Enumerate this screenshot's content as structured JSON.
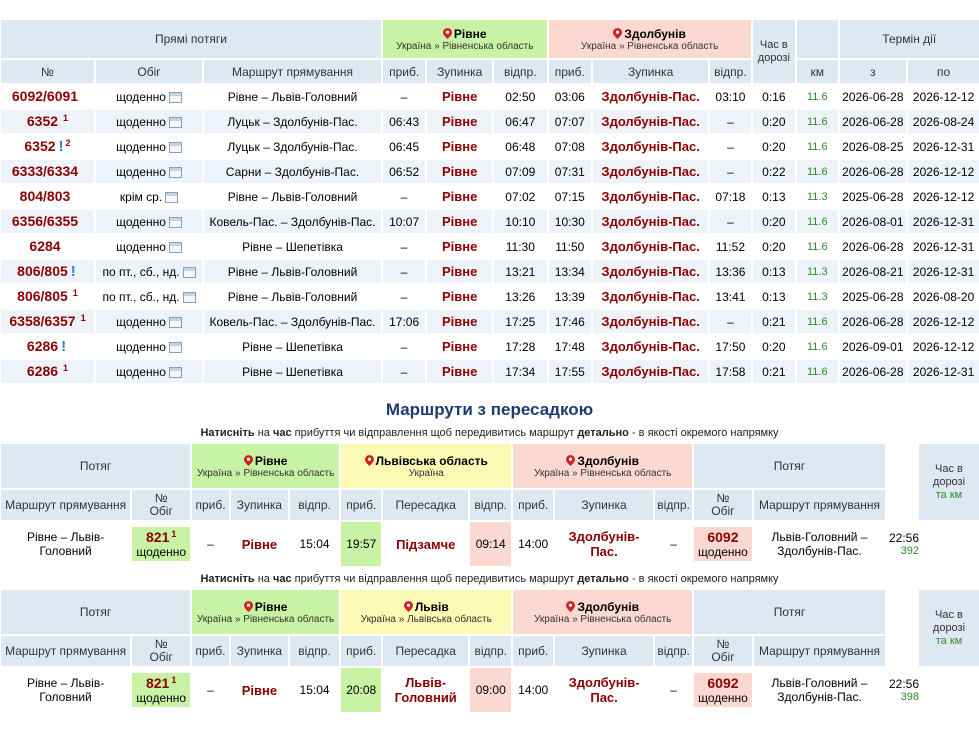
{
  "direct": {
    "header": {
      "title": "Прямі потяги",
      "from_name": "Рівне",
      "from_region": "Україна » Рівненська область",
      "to_name": "Здолбунів",
      "to_region": "Україна » Рівненська область",
      "travel_time": "Час в дорозі",
      "validity": "Термін дії",
      "col_num": "№",
      "col_schedule": "Обіг",
      "col_route": "Маршрут прямування",
      "col_arr": "приб.",
      "col_stop": "Зупинка",
      "col_dep": "відпр.",
      "col_arr2": "приб.",
      "col_stop2": "Зупинка",
      "col_dep2": "відпр.",
      "col_km": "км",
      "col_from": "з",
      "col_to": "по"
    },
    "rows": [
      {
        "num": "6092/6091",
        "sup": "",
        "warn": "",
        "sched": "щоденно",
        "route": "Рівне – Львів-Головний",
        "arr": "–",
        "stop": "Рівне",
        "dep": "02:50",
        "arr2": "03:06",
        "stop2": "Здолбунів-Пас.",
        "dep2": "03:10",
        "time": "0:16",
        "km": "11.6",
        "from": "2026-06-28",
        "to": "2026-12-12"
      },
      {
        "num": "6352",
        "sup": "1",
        "warn": "",
        "sched": "щоденно",
        "route": "Луцьк – Здолбунів-Пас.",
        "arr": "06:43",
        "stop": "Рівне",
        "dep": "06:47",
        "arr2": "07:07",
        "stop2": "Здолбунів-Пас.",
        "dep2": "–",
        "time": "0:20",
        "km": "11.6",
        "from": "2026-06-28",
        "to": "2026-08-24"
      },
      {
        "num": "6352",
        "sup": "2",
        "warn": "!",
        "sched": "щоденно",
        "route": "Луцьк – Здолбунів-Пас.",
        "arr": "06:45",
        "stop": "Рівне",
        "dep": "06:48",
        "arr2": "07:08",
        "stop2": "Здолбунів-Пас.",
        "dep2": "–",
        "time": "0:20",
        "km": "11.6",
        "from": "2026-08-25",
        "to": "2026-12-31"
      },
      {
        "num": "6333/6334",
        "sup": "",
        "warn": "",
        "sched": "щоденно",
        "route": "Сарни – Здолбунів-Пас.",
        "arr": "06:52",
        "stop": "Рівне",
        "dep": "07:09",
        "arr2": "07:31",
        "stop2": "Здолбунів-Пас.",
        "dep2": "–",
        "time": "0:22",
        "km": "11.6",
        "from": "2026-06-28",
        "to": "2026-12-12"
      },
      {
        "num": "804/803",
        "sup": "",
        "warn": "",
        "sched": "крім ср.",
        "route": "Рівне – Львів-Головний",
        "arr": "–",
        "stop": "Рівне",
        "dep": "07:02",
        "arr2": "07:15",
        "stop2": "Здолбунів-Пас.",
        "dep2": "07:18",
        "time": "0:13",
        "km": "11.3",
        "from": "2025-06-28",
        "to": "2026-12-12"
      },
      {
        "num": "6356/6355",
        "sup": "",
        "warn": "",
        "sched": "щоденно",
        "route": "Ковель-Пас. – Здолбунів-Пас.",
        "arr": "10:07",
        "stop": "Рівне",
        "dep": "10:10",
        "arr2": "10:30",
        "stop2": "Здолбунів-Пас.",
        "dep2": "–",
        "time": "0:20",
        "km": "11.6",
        "from": "2026-08-01",
        "to": "2026-12-31"
      },
      {
        "num": "6284",
        "sup": "",
        "warn": "",
        "sched": "щоденно",
        "route": "Рівне – Шепетівка",
        "arr": "–",
        "stop": "Рівне",
        "dep": "11:30",
        "arr2": "11:50",
        "stop2": "Здолбунів-Пас.",
        "dep2": "11:52",
        "time": "0:20",
        "km": "11.6",
        "from": "2026-06-28",
        "to": "2026-12-31"
      },
      {
        "num": "806/805",
        "sup": "",
        "warn": "!",
        "sched": "по пт., сб., нд.",
        "route": "Рівне – Львів-Головний",
        "arr": "–",
        "stop": "Рівне",
        "dep": "13:21",
        "arr2": "13:34",
        "stop2": "Здолбунів-Пас.",
        "dep2": "13:36",
        "time": "0:13",
        "km": "11.3",
        "from": "2026-08-21",
        "to": "2026-12-31"
      },
      {
        "num": "806/805",
        "sup": "1",
        "warn": "",
        "sched": "по пт., сб., нд.",
        "route": "Рівне – Львів-Головний",
        "arr": "–",
        "stop": "Рівне",
        "dep": "13:26",
        "arr2": "13:39",
        "stop2": "Здолбунів-Пас.",
        "dep2": "13:41",
        "time": "0:13",
        "km": "11.3",
        "from": "2025-06-28",
        "to": "2026-08-20"
      },
      {
        "num": "6358/6357",
        "sup": "1",
        "warn": "",
        "sched": "щоденно",
        "route": "Ковель-Пас. – Здолбунів-Пас.",
        "arr": "17:06",
        "stop": "Рівне",
        "dep": "17:25",
        "arr2": "17:46",
        "stop2": "Здолбунів-Пас.",
        "dep2": "–",
        "time": "0:21",
        "km": "11.6",
        "from": "2026-06-28",
        "to": "2026-12-12"
      },
      {
        "num": "6286",
        "sup": "",
        "warn": "!",
        "sched": "щоденно",
        "route": "Рівне – Шепетівка",
        "arr": "–",
        "stop": "Рівне",
        "dep": "17:28",
        "arr2": "17:48",
        "stop2": "Здолбунів-Пас.",
        "dep2": "17:50",
        "time": "0:20",
        "km": "11.6",
        "from": "2026-09-01",
        "to": "2026-12-12"
      },
      {
        "num": "6286",
        "sup": "1",
        "warn": "",
        "sched": "щоденно",
        "route": "Рівне – Шепетівка",
        "arr": "–",
        "stop": "Рівне",
        "dep": "17:34",
        "arr2": "17:55",
        "stop2": "Здолбунів-Пас.",
        "dep2": "17:58",
        "time": "0:21",
        "km": "11.6",
        "from": "2026-06-28",
        "to": "2026-12-31"
      }
    ]
  },
  "transfers": {
    "title": "Маршрути з пересадкою",
    "note_parts": [
      "Натисніть",
      " на ",
      "час",
      " прибуття чи відправлення щоб передивитись маршрут ",
      "детально",
      " - в якості окремого напрямку"
    ],
    "header": {
      "train": "Потяг",
      "route": "Маршрут прямування",
      "num": "№",
      "sched": "Обіг",
      "arr": "приб.",
      "stop": "Зупинка",
      "dep": "відпр.",
      "transfer": "Пересадка",
      "time": "Час в дорозі",
      "km": "та км"
    },
    "items": [
      {
        "from_name": "Рівне",
        "from_region": "Україна » Рівненська область",
        "mid_name": "Львівська область",
        "mid_region": "Україна",
        "to_name": "Здолбунів",
        "to_region": "Україна » Рівненська область",
        "route1": "Рівне – Львів-Головний",
        "num1": "821",
        "sup1": "1",
        "sched1": "щоденно",
        "arr1": "–",
        "stop1": "Рівне",
        "dep1": "15:04",
        "arr_t": "19:57",
        "stop_t": "Підзамче",
        "dep_t": "09:14",
        "arr2": "14:00",
        "stop2": "Здолбунів-Пас.",
        "dep2": "–",
        "num2": "6092",
        "sched2": "щоденно",
        "route2": "Львів-Головний – Здолбунів-Пас.",
        "time": "22:56",
        "km": "392"
      },
      {
        "from_name": "Рівне",
        "from_region": "Україна » Рівненська область",
        "mid_name": "Львів",
        "mid_region": "Україна » Львівська область",
        "to_name": "Здолбунів",
        "to_region": "Україна » Рівненська область",
        "route1": "Рівне – Львів-Головний",
        "num1": "821",
        "sup1": "1",
        "sched1": "щоденно",
        "arr1": "–",
        "stop1": "Рівне",
        "dep1": "15:04",
        "arr_t": "20:08",
        "stop_t": "Львів-Головний",
        "dep_t": "09:00",
        "arr2": "14:00",
        "stop2": "Здолбунів-Пас.",
        "dep2": "–",
        "num2": "6092",
        "sched2": "щоденно",
        "route2": "Львів-Головний – Здолбунів-Пас.",
        "time": "22:56",
        "km": "398"
      }
    ]
  },
  "colors": {
    "green": "#c8f2a4",
    "red": "#fcd9d0",
    "yellow": "#fafab4",
    "header": "#dde8f3",
    "train": "#8b0000",
    "km": "#2e8b2e",
    "title": "#1f3a73"
  }
}
